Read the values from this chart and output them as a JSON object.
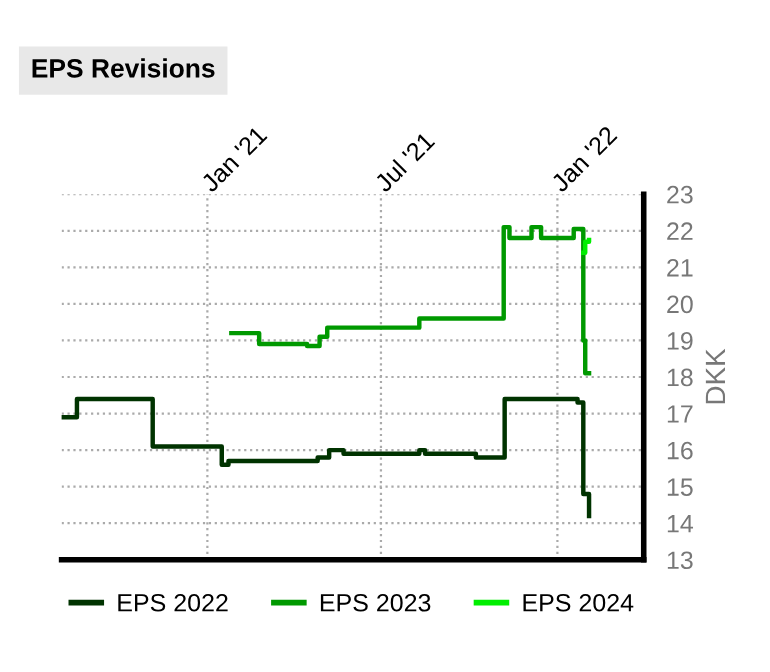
{
  "chart_data": {
    "type": "step",
    "title": "EPS Revisions",
    "ylabel": "DKK",
    "xlim": [
      "2020-08-02",
      "2022-04-01"
    ],
    "xticks": [
      {
        "value": "2021-01-01",
        "label": "Jan '21"
      },
      {
        "value": "2021-07-01",
        "label": "Jul '21"
      },
      {
        "value": "2022-01-01",
        "label": "Jan '22"
      }
    ],
    "ylim": [
      13,
      23
    ],
    "yticks": [
      13,
      14,
      15,
      16,
      17,
      18,
      19,
      20,
      21,
      22,
      23
    ],
    "grid": true,
    "legend": "bottom",
    "series": [
      {
        "name": "EPS 2022",
        "color": "#003300",
        "x": [
          "2020-08-02",
          "2020-08-18",
          "2020-11-05",
          "2021-01-16",
          "2021-01-23",
          "2021-04-26",
          "2021-05-08",
          "2021-05-23",
          "2021-08-10",
          "2021-08-16",
          "2021-10-08",
          "2021-11-07",
          "2022-01-22",
          "2022-01-28",
          "2022-02-03"
        ],
        "values": [
          16.9,
          17.4,
          16.1,
          15.6,
          15.7,
          15.8,
          16.0,
          15.9,
          16.0,
          15.9,
          15.8,
          17.4,
          17.3,
          14.8,
          14.2
        ]
      },
      {
        "name": "EPS 2023",
        "color": "#009900",
        "x": [
          "2021-01-26",
          "2021-02-24",
          "2021-04-15",
          "2021-04-28",
          "2021-05-06",
          "2021-08-10",
          "2021-11-06",
          "2021-11-12",
          "2021-12-05",
          "2021-12-15",
          "2022-01-18",
          "2022-01-28",
          "2022-01-30",
          "2022-02-03"
        ],
        "values": [
          19.2,
          18.9,
          18.85,
          19.1,
          19.35,
          19.6,
          22.1,
          21.8,
          22.1,
          21.8,
          22.05,
          19.0,
          18.1,
          18.1
        ]
      },
      {
        "name": "EPS 2024",
        "color": "#00ee00",
        "x": [
          "2022-01-28",
          "2022-01-30",
          "2022-02-03"
        ],
        "values": [
          21.4,
          21.7,
          21.75
        ]
      }
    ]
  }
}
